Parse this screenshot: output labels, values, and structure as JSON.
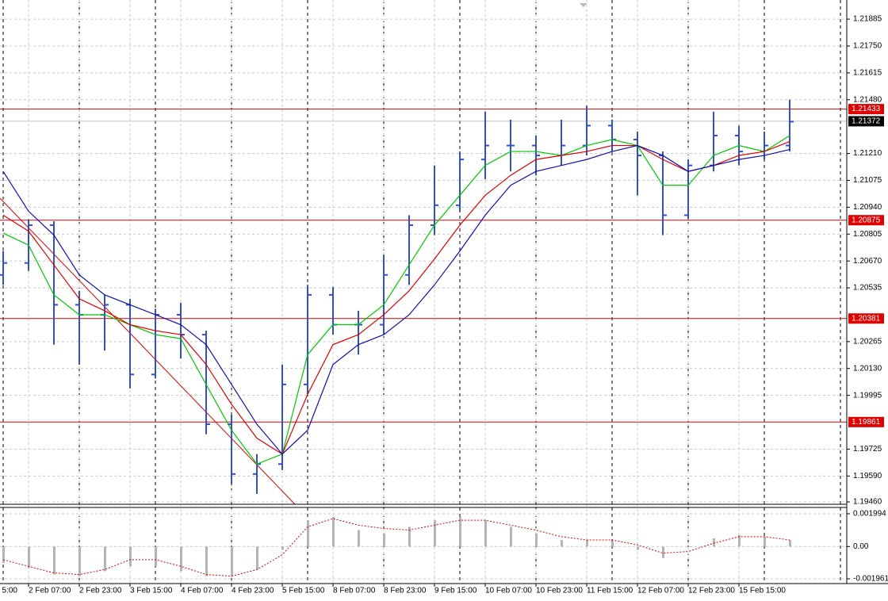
{
  "chart_data": [
    {
      "type": "candlestick",
      "categories": [
        "5:00",
        "2 Feb 07:00",
        null,
        "2 Feb 23:00",
        null,
        "3 Feb 15:00",
        null,
        "4 Feb 07:00",
        null,
        "4 Feb 23:00",
        null,
        "5 Feb 15:00",
        null,
        "8 Feb 07:00",
        null,
        "8 Feb 23:00",
        null,
        "9 Feb 15:00",
        null,
        "10 Feb 07:00",
        null,
        "10 Feb 23:00",
        null,
        "11 Feb 15:00",
        null,
        "12 Feb 07:00",
        null,
        "12 Feb 23:00",
        null,
        "15 Feb 15:00",
        null,
        null
      ],
      "open": [
        1.206,
        1.2066,
        1.2085,
        1.2045,
        1.204,
        1.2045,
        1.201,
        1.204,
        1.203,
        1.1985,
        1.196,
        1.1965,
        1.2005,
        1.205,
        1.2035,
        1.2035,
        1.206,
        1.2085,
        1.2095,
        1.2118,
        1.2125,
        1.2125,
        1.212,
        1.2125,
        1.2135,
        1.2128,
        1.212,
        1.209,
        1.2115,
        1.213,
        1.2122,
        1.2125
      ],
      "high": [
        1.2072,
        1.2088,
        1.2087,
        1.2052,
        1.205,
        1.2048,
        1.2043,
        1.2046,
        1.2032,
        1.199,
        1.197,
        1.2015,
        1.2055,
        1.2054,
        1.2042,
        1.207,
        1.209,
        1.2115,
        1.2122,
        1.2142,
        1.2138,
        1.213,
        1.2138,
        1.2145,
        1.2138,
        1.2132,
        1.2122,
        1.2118,
        1.2142,
        1.2135,
        1.2132,
        1.2148
      ],
      "low": [
        1.2055,
        1.2062,
        1.2025,
        1.2015,
        1.2022,
        1.2003,
        1.2008,
        1.2018,
        1.198,
        1.1955,
        1.195,
        1.1962,
        1.2,
        1.203,
        1.202,
        1.203,
        1.2055,
        1.208,
        1.2092,
        1.2108,
        1.2112,
        1.211,
        1.2115,
        1.212,
        1.2122,
        1.21,
        1.208,
        1.2088,
        1.2112,
        1.2115,
        1.2118,
        1.2122
      ],
      "close": [
        1.2066,
        1.2085,
        1.2045,
        1.204,
        1.2045,
        1.201,
        1.204,
        1.203,
        1.1985,
        1.196,
        1.1965,
        1.2005,
        1.205,
        1.2035,
        1.2035,
        1.206,
        1.2085,
        1.2095,
        1.2118,
        1.2125,
        1.2125,
        1.212,
        1.2125,
        1.2135,
        1.2128,
        1.212,
        1.209,
        1.2115,
        1.213,
        1.2122,
        1.2125,
        1.2137
      ],
      "color": "#3050c8",
      "lines": [
        {
          "color": "#00c800",
          "values": [
            1.2081,
            1.2075,
            1.205,
            1.204,
            1.204,
            1.2035,
            1.203,
            1.2028,
            1.2005,
            1.1982,
            1.1965,
            1.197,
            1.202,
            1.2035,
            1.2035,
            1.2045,
            1.2065,
            1.2085,
            1.21,
            1.2115,
            1.2122,
            1.2122,
            1.212,
            1.2125,
            1.2128,
            1.2125,
            1.2105,
            1.2105,
            1.212,
            1.2125,
            1.2122,
            1.213
          ]
        },
        {
          "color": "#e00000",
          "values": [
            1.209,
            1.2082,
            1.2065,
            1.2048,
            1.2042,
            1.2035,
            1.2032,
            1.203,
            1.2015,
            1.1995,
            1.1978,
            1.197,
            1.2,
            1.2025,
            1.203,
            1.204,
            1.2052,
            1.2068,
            1.2085,
            1.21,
            1.211,
            1.2118,
            1.212,
            1.2122,
            1.2125,
            1.2125,
            1.2118,
            1.2112,
            1.2115,
            1.212,
            1.2122,
            1.2127
          ]
        },
        {
          "color": "#1010b0",
          "values": [
            1.2112,
            1.2092,
            1.208,
            1.206,
            1.205,
            1.2045,
            1.204,
            1.2035,
            1.2025,
            1.2005,
            1.1985,
            1.197,
            1.1982,
            1.2015,
            1.2025,
            1.203,
            1.204,
            1.2055,
            1.2072,
            1.209,
            1.2105,
            1.2112,
            1.2115,
            1.2118,
            1.2122,
            1.2125,
            1.212,
            1.2112,
            1.2115,
            1.2118,
            1.212,
            1.2123
          ]
        }
      ],
      "ylim": [
        1.19448,
        1.21981
      ],
      "yticks": [
        1.21885,
        {
          "value": 1.2175,
          "label": "1.21750"
        },
        1.21615,
        {
          "value": 1.2148,
          "label": "1.21480"
        },
        {
          "value": 1.2121,
          "label": "1.21210"
        },
        1.21075,
        {
          "value": 1.2094,
          "label": "1.20940"
        },
        1.20805,
        {
          "value": 1.2067,
          "label": "1.20670"
        },
        1.20535,
        1.20265,
        {
          "value": 1.2013,
          "label": "1.20130"
        },
        1.19995,
        1.19725,
        {
          "value": 1.1959,
          "label": "1.19590"
        },
        {
          "value": 1.1946,
          "label": "1.19460"
        }
      ],
      "grid": true,
      "levels": [
        1.21433,
        1.20875,
        1.20381,
        1.19861
      ],
      "level_color": "#e00000",
      "price": 1.21372
    },
    {
      "type": "bar",
      "values": [
        -0.001,
        -0.0013,
        -0.0017,
        -0.0018,
        -0.0015,
        -0.0012,
        -0.0012,
        -0.0015,
        -0.0018,
        -0.0018,
        -0.0014,
        -0.0002,
        0.0016,
        0.0018,
        0.001,
        0.0008,
        0.0012,
        0.0016,
        0.0018,
        0.0016,
        0.0012,
        0.0008,
        0.0004,
        0.0004,
        0.0003,
        -0.0002,
        -0.0007,
        0.0,
        0.0005,
        0.0007,
        0.0006,
        0.0004
      ],
      "color": "#b4b4b4",
      "signal": [
        -0.0008,
        -0.0012,
        -0.0016,
        -0.0017,
        -0.0014,
        -0.0008,
        -0.0008,
        -0.0012,
        -0.0017,
        -0.0018,
        -0.0014,
        -0.0005,
        0.0012,
        0.0017,
        0.0013,
        0.0011,
        0.001,
        0.0013,
        0.0016,
        0.0016,
        0.0013,
        0.001,
        0.0006,
        0.0004,
        0.0004,
        0.0001,
        -0.0004,
        -0.0003,
        0.0002,
        0.0006,
        0.0006,
        0.0004
      ],
      "signal_color": "#e00000",
      "ylim": [
        -0.00225,
        0.00233
      ],
      "yticks": [
        0.001994,
        {
          "value": 0,
          "label": "0.00"
        },
        -0.001961
      ]
    }
  ]
}
